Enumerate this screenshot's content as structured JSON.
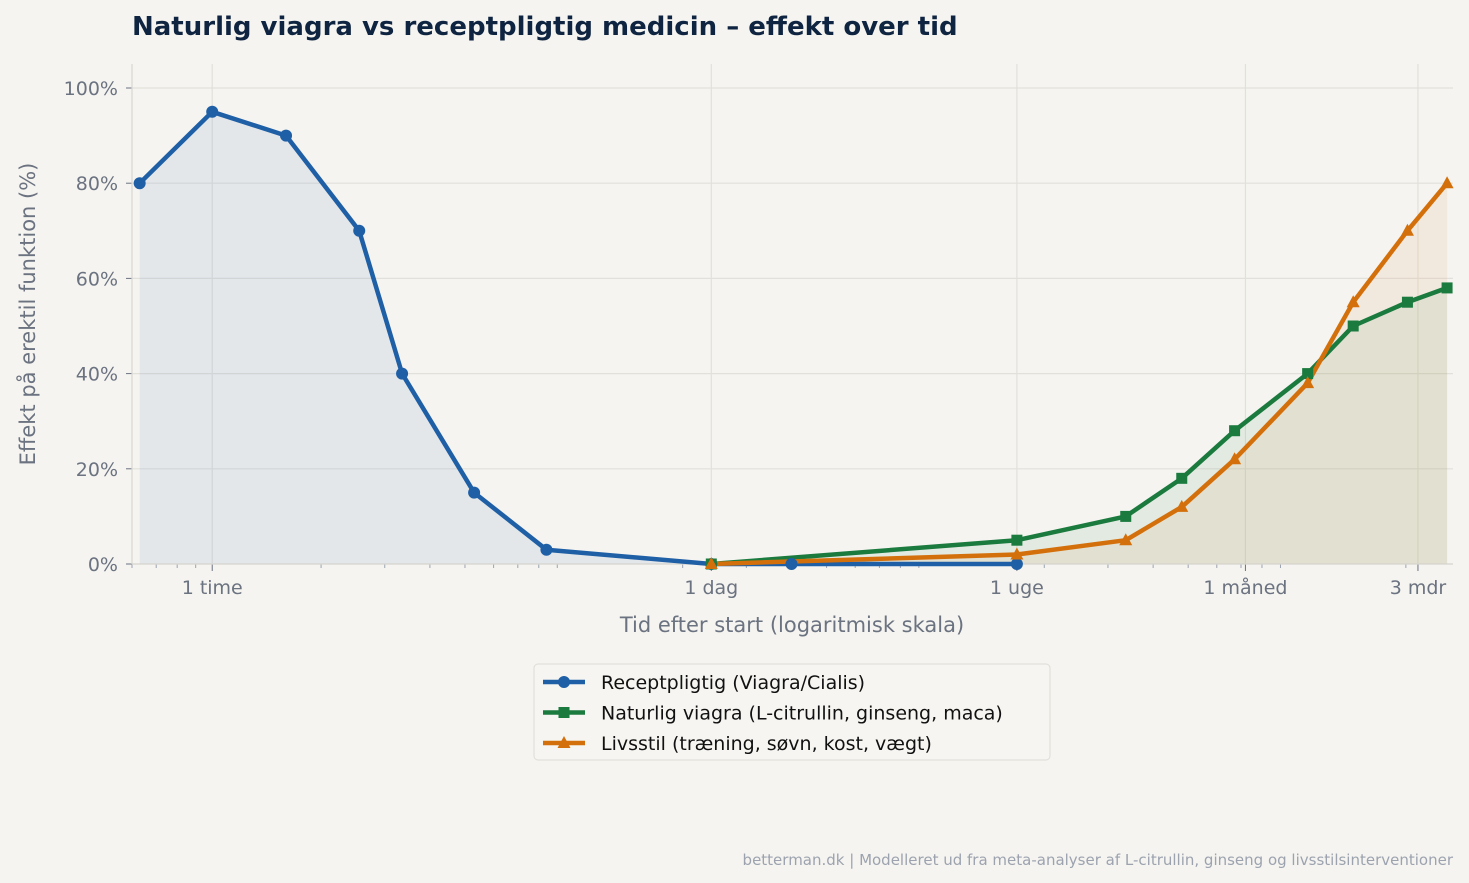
{
  "chart_data": {
    "type": "line",
    "title": "Naturlig viagra vs receptpligtig medicin – effekt over tid",
    "xlabel": "Tid efter start (logaritmisk skala)",
    "ylabel": "Effekt på erektil funktion (%)",
    "x_scale": "log",
    "x_unit": "hours",
    "xlim": [
      0.6,
      2700
    ],
    "ylim": [
      0,
      105
    ],
    "x_ticks": [
      {
        "value": 1,
        "label": "1 time"
      },
      {
        "value": 24,
        "label": "1 dag"
      },
      {
        "value": 168,
        "label": "1 uge"
      },
      {
        "value": 720,
        "label": "1 måned"
      },
      {
        "value": 2160,
        "label": "3 mdr"
      }
    ],
    "y_ticks": [
      {
        "value": 0,
        "label": "0%"
      },
      {
        "value": 20,
        "label": "20%"
      },
      {
        "value": 40,
        "label": "40%"
      },
      {
        "value": 60,
        "label": "60%"
      },
      {
        "value": 80,
        "label": "80%"
      },
      {
        "value": 100,
        "label": "100%"
      }
    ],
    "grid": true,
    "legend_position": "bottom-center",
    "series": [
      {
        "name": "Receptpligtig (Viagra/Cialis)",
        "color": "#1f5fa6",
        "marker": "circle",
        "x": [
          0.63,
          1,
          1.6,
          2.55,
          3.35,
          5.3,
          8.4,
          24,
          40,
          168
        ],
        "y": [
          80,
          95,
          90,
          70,
          40,
          15,
          3,
          0,
          0,
          0
        ]
      },
      {
        "name": "Naturlig viagra (L-citrullin, ginseng, maca)",
        "color": "#1b7a3e",
        "marker": "square",
        "x": [
          24,
          168,
          336,
          480,
          672,
          1070,
          1430,
          2020,
          2600
        ],
        "y": [
          0,
          5,
          10,
          18,
          28,
          40,
          50,
          55,
          58
        ]
      },
      {
        "name": "Livsstil (træning, søvn, kost, vægt)",
        "color": "#d4700b",
        "marker": "triangle",
        "x": [
          24,
          168,
          336,
          480,
          672,
          1070,
          1430,
          2020,
          2600
        ],
        "y": [
          0,
          2,
          5,
          12,
          22,
          38,
          55,
          70,
          80
        ]
      }
    ]
  },
  "footer": "betterman.dk | Modelleret ud fra meta-analyser af L-citrullin, ginseng og livsstilsinterventioner"
}
